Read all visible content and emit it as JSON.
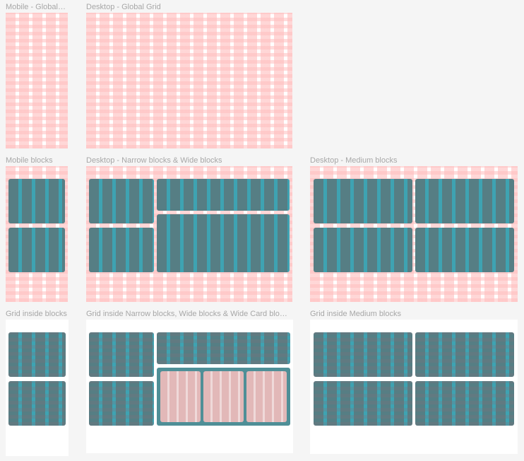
{
  "frames": {
    "mobile_global": "Mobile - Global Grid",
    "desktop_global": "Desktop - Global Grid",
    "mobile_blocks": "Mobile blocks",
    "desktop_narrow_wide": "Desktop - Narrow blocks & Wide blocks",
    "desktop_medium": "Desktop - Medium blocks",
    "grid_inside_mobile": "Grid inside blocks",
    "grid_inside_narrow_wide": "Grid inside Narrow blocks, Wide blocks & Wide Card blocks",
    "grid_inside_medium": "Grid inside Medium blocks"
  },
  "colors": {
    "canvas": "#f5f5f5",
    "grid_pink": "#ffbebe",
    "block_gray": "#567e84",
    "block_teal_column": "#3ea3b2",
    "inner_card_pink": "#e6bcbc"
  }
}
